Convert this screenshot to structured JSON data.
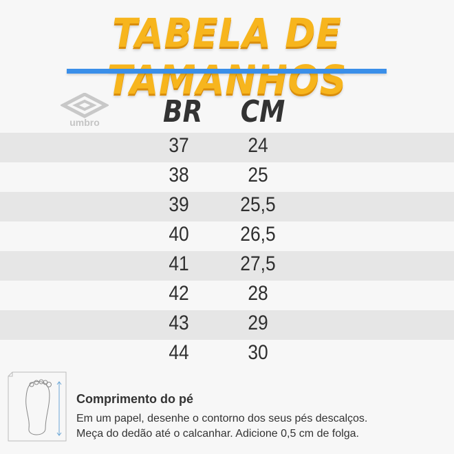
{
  "title": "TABELA DE TAMANHOS",
  "brand": "umbro",
  "accent_color": "#f7b51d",
  "bar_color": "#3a8fe9",
  "headers": {
    "br": "BR",
    "cm": "CM"
  },
  "rows": [
    {
      "br": "37",
      "cm": "24"
    },
    {
      "br": "38",
      "cm": "25"
    },
    {
      "br": "39",
      "cm": "25,5"
    },
    {
      "br": "40",
      "cm": "26,5"
    },
    {
      "br": "41",
      "cm": "27,5"
    },
    {
      "br": "42",
      "cm": "28"
    },
    {
      "br": "43",
      "cm": "29"
    },
    {
      "br": "44",
      "cm": "30"
    }
  ],
  "footer": {
    "icon": "foot-measure-icon",
    "title": "Comprimento do pé",
    "line1": "Em um papel, desenhe o contorno dos seus pés descalços.",
    "line2": "Meça do dedão até o calcanhar. Adicione 0,5 cm de folga."
  }
}
